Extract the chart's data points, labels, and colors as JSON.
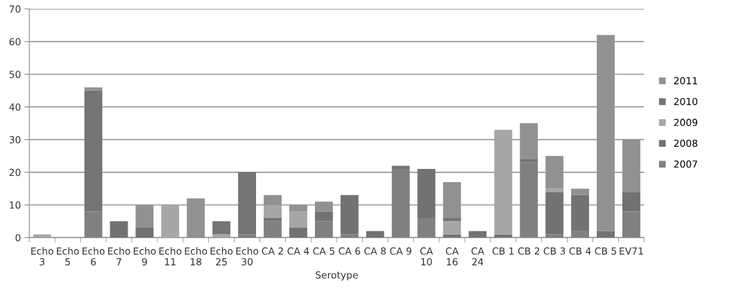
{
  "chart_data": {
    "type": "bar",
    "stacked": true,
    "xlabel": "Serotype",
    "categories": [
      "Echo\n3",
      "Echo\n5",
      "Echo\n6",
      "Echo\n7",
      "Echo\n9",
      "Echo\n11",
      "Echo\n18",
      "Echo\n25",
      "Echo\n30",
      "CA 2",
      "CA 4",
      "CA 5",
      "CA 6",
      "CA 8",
      "CA 9",
      "CA\n10",
      "CA\n16",
      "CA\n24",
      "CB 1",
      "CB 2",
      "CB 3",
      "CB 4",
      "CB 5",
      "EV71"
    ],
    "series": [
      {
        "name": "2007",
        "color": "#808080",
        "values": [
          0,
          0,
          8,
          0,
          0,
          0,
          0,
          0,
          1,
          5,
          0,
          5,
          1,
          0,
          21,
          6,
          0,
          0,
          0,
          23,
          1,
          2,
          0,
          8
        ]
      },
      {
        "name": "2008",
        "color": "#727272",
        "values": [
          0,
          0,
          0,
          5,
          3,
          0,
          0,
          0,
          0,
          1,
          3,
          3,
          12,
          2,
          0,
          15,
          1,
          2,
          1,
          0,
          13,
          11,
          2,
          6
        ]
      },
      {
        "name": "2009",
        "color": "#a6a6a6",
        "values": [
          1,
          0,
          0,
          0,
          0,
          10,
          0,
          1,
          0,
          4,
          5,
          0,
          0,
          0,
          0,
          0,
          4,
          0,
          32,
          0,
          1,
          0,
          0,
          0
        ]
      },
      {
        "name": "2010",
        "color": "#747474",
        "values": [
          0,
          0,
          37,
          0,
          0,
          0,
          0,
          4,
          19,
          0,
          0,
          0,
          0,
          0,
          1,
          0,
          1,
          0,
          0,
          1,
          0,
          0,
          0,
          0
        ]
      },
      {
        "name": "2011",
        "color": "#919191",
        "values": [
          0,
          0,
          1,
          0,
          7,
          0,
          12,
          0,
          0,
          3,
          2,
          3,
          0,
          0,
          0,
          0,
          11,
          0,
          0,
          11,
          10,
          2,
          60,
          16
        ]
      }
    ],
    "ylim": [
      0,
      70
    ],
    "yticks": [
      0,
      10,
      20,
      30,
      40,
      50,
      60,
      70
    ],
    "grid": "y",
    "legend": "right"
  }
}
